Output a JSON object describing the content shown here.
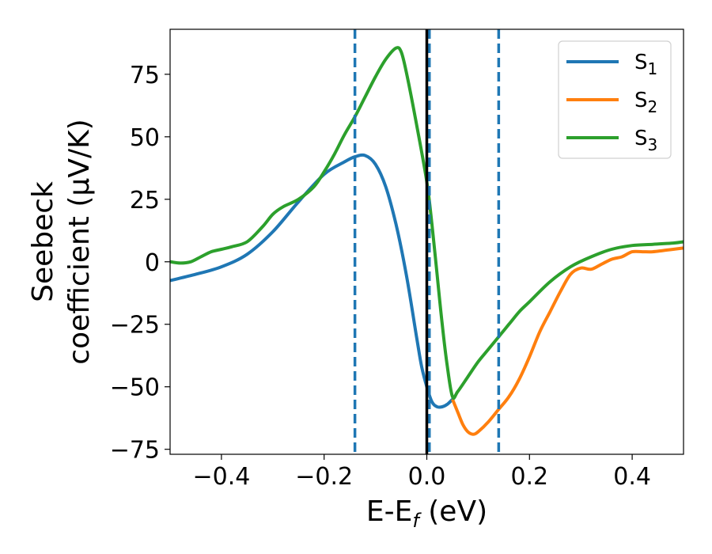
{
  "chart_data": {
    "type": "line",
    "xlabel": "E-Ef (eV)",
    "xlabel_main": "E-E",
    "xlabel_sub": "f",
    "xlabel_unit": " (eV)",
    "ylabel_line1": "Seebeck",
    "ylabel_line2": "coefficient  (μV/K)",
    "xlim": [
      -0.5,
      0.5
    ],
    "ylim": [
      -77,
      93
    ],
    "xticks": [
      -0.4,
      -0.2,
      0.0,
      0.2,
      0.4
    ],
    "xtick_labels": [
      "−0.4",
      "−0.2",
      "0.0",
      "0.2",
      "0.4"
    ],
    "yticks": [
      75,
      50,
      25,
      0,
      -25,
      -50,
      -75
    ],
    "ytick_labels": [
      "75",
      "50",
      "25",
      "0",
      "−25",
      "−50",
      "−75"
    ],
    "grid": false,
    "legend_position": "top-right",
    "vlines": [
      {
        "x": -0.14,
        "style": "dashed",
        "color": "#1f77b4"
      },
      {
        "x": 0.005,
        "style": "dashed",
        "color": "#1f77b4"
      },
      {
        "x": 0.14,
        "style": "dashed",
        "color": "#1f77b4"
      },
      {
        "x": 0.0,
        "style": "solid",
        "color": "#000000"
      }
    ],
    "series": [
      {
        "name": "S1",
        "legend_main": "S",
        "legend_sub": "1",
        "color": "#1f77b4",
        "x": [
          -0.5,
          -0.45,
          -0.4,
          -0.35,
          -0.3,
          -0.25,
          -0.2,
          -0.16,
          -0.14,
          -0.12,
          -0.1,
          -0.08,
          -0.06,
          -0.04,
          -0.02,
          -0.01,
          0.0,
          0.01,
          0.02,
          0.03,
          0.04,
          0.05
        ],
        "y": [
          -7.5,
          -5,
          -2,
          3,
          12,
          24,
          35,
          40,
          42,
          42.5,
          39,
          30,
          15,
          -5,
          -30,
          -42,
          -50,
          -56,
          -58,
          -58,
          -57,
          -55
        ]
      },
      {
        "name": "S2",
        "legend_main": "S",
        "legend_sub": "2",
        "color": "#ff7f0e",
        "x": [
          0.05,
          0.06,
          0.07,
          0.08,
          0.09,
          0.1,
          0.12,
          0.14,
          0.16,
          0.18,
          0.2,
          0.22,
          0.24,
          0.26,
          0.28,
          0.3,
          0.32,
          0.34,
          0.36,
          0.38,
          0.4,
          0.42,
          0.44,
          0.46,
          0.48,
          0.5
        ],
        "y": [
          -55,
          -60,
          -65,
          -68,
          -69,
          -68,
          -64,
          -59,
          -54,
          -47,
          -38,
          -28,
          -20,
          -12,
          -5,
          -2.5,
          -3,
          -1,
          1,
          2,
          4,
          4,
          4,
          4.5,
          5,
          5.5
        ]
      },
      {
        "name": "S3",
        "legend_main": "S",
        "legend_sub": "3",
        "color": "#2ca02c",
        "x": [
          -0.5,
          -0.48,
          -0.46,
          -0.44,
          -0.42,
          -0.4,
          -0.38,
          -0.35,
          -0.32,
          -0.3,
          -0.28,
          -0.25,
          -0.22,
          -0.2,
          -0.18,
          -0.16,
          -0.14,
          -0.12,
          -0.1,
          -0.08,
          -0.06,
          -0.05,
          -0.04,
          -0.02,
          0.0,
          0.01,
          0.02,
          0.03,
          0.04,
          0.05,
          0.06,
          0.08,
          0.1,
          0.12,
          0.14,
          0.16,
          0.18,
          0.2,
          0.24,
          0.28,
          0.32,
          0.36,
          0.4,
          0.44,
          0.48,
          0.5
        ],
        "y": [
          0,
          -0.5,
          0,
          2,
          4,
          5,
          6,
          8,
          14,
          19,
          22,
          25,
          30,
          36,
          43,
          51,
          58,
          66,
          74,
          81,
          85.5,
          84,
          76,
          55,
          32,
          15,
          -5,
          -25,
          -42,
          -54,
          -52,
          -46,
          -40,
          -35,
          -30,
          -25,
          -20,
          -16,
          -8,
          -2,
          2,
          5,
          6.5,
          7,
          7.5,
          8
        ]
      }
    ]
  }
}
